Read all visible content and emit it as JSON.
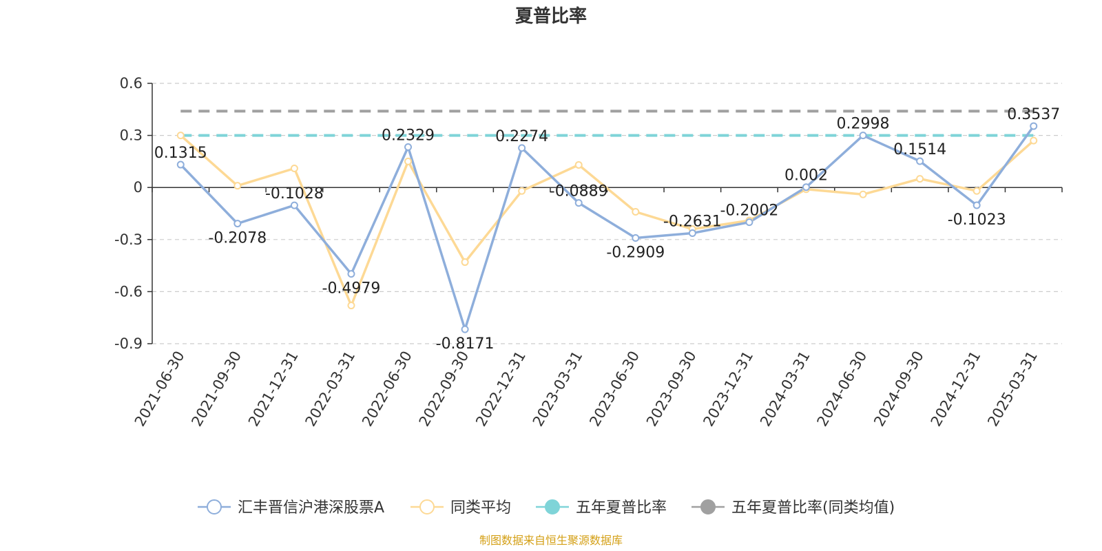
{
  "chart_data": {
    "type": "line",
    "title": "夏普比率",
    "x": [
      "2021-06-30",
      "2021-09-30",
      "2021-12-31",
      "2022-03-31",
      "2022-06-30",
      "2022-09-30",
      "2022-12-31",
      "2023-03-31",
      "2023-06-30",
      "2023-09-30",
      "2023-12-31",
      "2024-03-31",
      "2024-06-30",
      "2024-09-30",
      "2024-12-31",
      "2025-03-31"
    ],
    "ylim": [
      -0.9,
      0.6
    ],
    "yticks": [
      "0.6",
      "0.3",
      "0",
      "-0.3",
      "-0.6",
      "-0.9"
    ],
    "ytick_values": [
      0.6,
      0.3,
      0,
      -0.3,
      -0.6,
      -0.9
    ],
    "grid": true,
    "legend_position": "bottom",
    "series": [
      {
        "name": "汇丰晋信沪港深股票A",
        "color": "#8eaedb",
        "values": [
          0.1315,
          -0.2078,
          -0.1028,
          -0.4979,
          0.2329,
          -0.8171,
          0.2274,
          -0.0889,
          -0.2909,
          -0.2631,
          -0.2002,
          0.002,
          0.2998,
          0.1514,
          -0.1023,
          0.3537
        ],
        "labels": [
          "0.1315",
          "-0.2078",
          "-0.1028",
          "-0.4979",
          "0.2329",
          "-0.8171",
          "0.2274",
          "-0.0889",
          "-0.2909",
          "-0.2631",
          "-0.2002",
          "0.002",
          "0.2998",
          "0.1514",
          "-0.1023",
          "0.3537"
        ]
      },
      {
        "name": "同类平均",
        "color": "#fdd995",
        "values": [
          0.3,
          0.01,
          0.11,
          -0.68,
          0.15,
          -0.43,
          -0.02,
          0.13,
          -0.14,
          -0.24,
          -0.19,
          -0.01,
          -0.04,
          0.05,
          -0.02,
          0.27
        ]
      },
      {
        "name": "五年夏普比率",
        "color": "#7fd4d8",
        "value": 0.3
      },
      {
        "name": "五年夏普比率(同类均值)",
        "color": "#a0a0a0",
        "value": 0.44
      }
    ],
    "source": "制图数据来自恒生聚源数据库"
  }
}
